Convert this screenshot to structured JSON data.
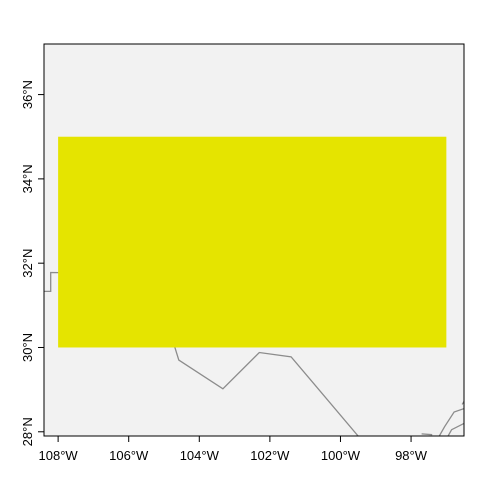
{
  "map": {
    "colors": {
      "panel_background": "#f2f2f2",
      "highlight_region": "#e5e400",
      "border_line": "#8c8c8c",
      "axis": "#000000"
    },
    "x_axis": {
      "range": [
        -108.4,
        -96.5
      ],
      "ticks": [
        {
          "value": -108,
          "label": "108°W"
        },
        {
          "value": -106,
          "label": "106°W"
        },
        {
          "value": -104,
          "label": "104°W"
        },
        {
          "value": -102,
          "label": "102°W"
        },
        {
          "value": -100,
          "label": "100°W"
        },
        {
          "value": -98,
          "label": "98°W"
        }
      ]
    },
    "y_axis": {
      "range": [
        27.9,
        37.2
      ],
      "ticks": [
        {
          "value": 28,
          "label": "28°N"
        },
        {
          "value": 30,
          "label": "30°N"
        },
        {
          "value": 32,
          "label": "32°N"
        },
        {
          "value": 34,
          "label": "34°N"
        },
        {
          "value": 36,
          "label": "36°N"
        }
      ]
    },
    "highlight_region": {
      "lon_min": -108,
      "lon_max": -97,
      "lat_min": 30,
      "lat_max": 35
    },
    "border_lines": [
      {
        "name": "us-mexico-border",
        "points": [
          [
            -108.4,
            31.33
          ],
          [
            -108.21,
            31.33
          ],
          [
            -108.21,
            31.78
          ],
          [
            -106.53,
            31.76
          ],
          [
            -104.9,
            30.57
          ],
          [
            -104.58,
            29.7
          ],
          [
            -103.33,
            29.02
          ],
          [
            -102.3,
            29.88
          ],
          [
            -101.4,
            29.78
          ],
          [
            -99.5,
            27.9
          ]
        ]
      },
      {
        "name": "coast-east-1",
        "points": [
          [
            -96.5,
            28.55
          ],
          [
            -96.78,
            28.47
          ],
          [
            -97.05,
            28.12
          ],
          [
            -97.2,
            27.9
          ]
        ]
      },
      {
        "name": "coast-east-2",
        "points": [
          [
            -96.5,
            28.72
          ],
          [
            -96.55,
            28.65
          ]
        ]
      },
      {
        "name": "coast-east-3",
        "points": [
          [
            -97.7,
            27.95
          ],
          [
            -97.4,
            27.93
          ]
        ]
      },
      {
        "name": "coast-east-4",
        "points": [
          [
            -96.5,
            28.2
          ],
          [
            -96.85,
            28.05
          ],
          [
            -96.95,
            27.9
          ]
        ]
      }
    ]
  }
}
